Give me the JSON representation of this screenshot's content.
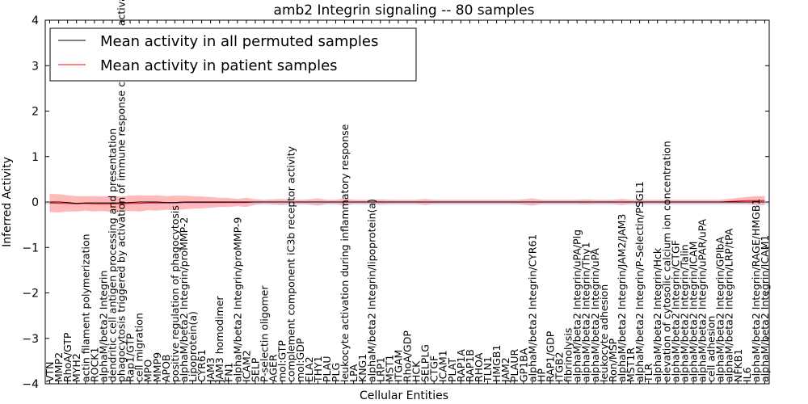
{
  "chart_data": {
    "type": "line",
    "title": "amb2 Integrin signaling -- 80 samples",
    "xlabel": "Cellular Entities",
    "ylabel": "Inferred Activity",
    "ylim": [
      -4,
      4
    ],
    "yticks": [
      -4,
      -3,
      -2,
      -1,
      0,
      1,
      2,
      3,
      4
    ],
    "legend_position": "top-left",
    "colors": {
      "permuted": "#000000",
      "patient": "#ff0000",
      "band": "#ff8080"
    },
    "legend": [
      {
        "key": "permuted",
        "label": "Mean activity in all permuted samples"
      },
      {
        "key": "patient",
        "label": "Mean activity in patient samples"
      }
    ],
    "categories": [
      "VTN",
      "MMP2",
      "RhoA/GTP",
      "MYH2",
      "actin filament polymerization",
      "ROCK1",
      "alphaM/beta2 Integrin",
      "dendritic cell antigen processing and presentation",
      "phagocytosis triggered by activation of immune response cell surface activating receptor",
      "Rap1/GTP",
      "cell migration",
      "MPO",
      "MMP9",
      "APOB",
      "positive regulation of phagocytosis",
      "alphaM/beta2 Integrin/proMMP-2",
      "Lipoprotein(a)",
      "CYR61",
      "JAM3",
      "JAM3 homodimer",
      "FN1",
      "alphaM/beta2 Integrin/proMMP-9",
      "ICAM2",
      "SELP",
      "P-selectin oligomer",
      "AGER",
      "mol:GTP",
      "complement component iC3b receptor activity",
      "mol:GDP",
      "ELA2",
      "THY1",
      "PLAU",
      "PLG",
      "leukocyte activation during inflammatory response",
      "LPA",
      "KNG1",
      "alphaM/beta2 Integrin/lipoprotein(a)",
      "LRP1",
      "MST1",
      "ITGAM",
      "RhoA/GDP",
      "HCK",
      "SELPLG",
      "CTGF",
      "ICAM1",
      "PLAT",
      "RAP1A",
      "RAP1B",
      "RHOA",
      "TLN1",
      "HMGB1",
      "JAM2",
      "PLAUR",
      "GP1BA",
      "alphaM/beta2 Integrin/CYR61",
      "HP",
      "RAP1/GDP",
      "ITGB2",
      "fibrinolysis",
      "alphaM/beta2 Integrin/uPA/Plg",
      "alphaM/beta2 Integrin/Thy1",
      "alphaM/beta2 Integrin/uPA",
      "leukocyte adhesion",
      "Ron/MSP",
      "alphaM/beta2 Integrin/JAM2/JAM3",
      "MST1R",
      "alphaM/beta2 Integrin/P-Selectin/PSGL1",
      "TLR",
      "alphaM/beta2 Integrin/Hck",
      "elevation of cytosolic calcium ion concentration",
      "alphaM/beta2 Integrin/CTGF",
      "alphaM/beta2 Integrin/Talin",
      "alphaM/beta2 Integrin/ICAM",
      "alphaM/beta2 Integrin/uPAR/uPA",
      "cell adhesion",
      "alphaM/beta2 Integrin/GPIbA",
      "alphaM/beta2 Integrin/LRP/tPA",
      "NFKB1",
      "IL6",
      "alphaM/beta2 Integrin/RAGE/HMGB1",
      "alphaM/beta2 Integrin/ICAM1"
    ],
    "series": [
      {
        "name": "Mean activity in all permuted samples",
        "values": [
          0,
          0,
          -0.01,
          -0.03,
          -0.02,
          -0.02,
          -0.02,
          -0.02,
          -0.02,
          -0.01,
          0,
          0,
          0,
          -0.01,
          -0.01,
          0,
          0,
          0,
          0,
          0,
          0,
          0,
          0,
          0,
          0,
          0,
          0,
          0,
          0,
          0,
          0,
          0,
          0,
          0,
          0,
          0,
          0,
          0,
          0,
          0,
          0,
          0,
          0,
          0,
          0,
          0,
          0,
          0,
          0,
          0,
          0,
          0,
          0,
          0,
          0,
          0,
          0,
          0,
          0,
          0,
          0,
          0,
          0,
          0,
          0,
          0,
          0,
          0,
          0,
          0,
          0,
          0,
          0,
          0,
          0,
          0,
          0,
          0,
          0,
          0,
          0
        ]
      },
      {
        "name": "Mean activity in patient samples",
        "values": [
          -0.02,
          -0.03,
          -0.03,
          -0.04,
          -0.03,
          -0.04,
          -0.04,
          -0.04,
          -0.04,
          -0.03,
          -0.03,
          -0.02,
          -0.02,
          -0.02,
          -0.02,
          -0.01,
          -0.01,
          -0.01,
          -0.01,
          -0.01,
          -0.01,
          -0.01,
          -0.01,
          0,
          0,
          0,
          0,
          0,
          0,
          0,
          0,
          0,
          0,
          0,
          0,
          0,
          0,
          0,
          0,
          0,
          0,
          0,
          0,
          0,
          0,
          0,
          0,
          0,
          0,
          0,
          0,
          0,
          0,
          0,
          0,
          0,
          0,
          0,
          0,
          0,
          0,
          0,
          0,
          0,
          0,
          0,
          0,
          0,
          0,
          0,
          0,
          0,
          0,
          0,
          0,
          0,
          0.01,
          0.02,
          0.03,
          0.03,
          0.03
        ]
      }
    ],
    "band_halfwidth": [
      0.2,
      0.2,
      0.18,
      0.17,
      0.16,
      0.17,
      0.16,
      0.18,
      0.16,
      0.17,
      0.18,
      0.16,
      0.17,
      0.15,
      0.16,
      0.15,
      0.14,
      0.13,
      0.12,
      0.1,
      0.1,
      0.08,
      0.1,
      0.06,
      0.05,
      0.06,
      0.07,
      0.05,
      0.05,
      0.06,
      0.08,
      0.05,
      0.05,
      0.08,
      0.05,
      0.05,
      0.05,
      0.06,
      0.05,
      0.05,
      0.05,
      0.05,
      0.07,
      0.05,
      0.05,
      0.05,
      0.05,
      0.05,
      0.05,
      0.05,
      0.05,
      0.05,
      0.05,
      0.06,
      0.08,
      0.05,
      0.05,
      0.05,
      0.05,
      0.05,
      0.06,
      0.05,
      0.05,
      0.05,
      0.07,
      0.05,
      0.05,
      0.05,
      0.05,
      0.05,
      0.05,
      0.05,
      0.05,
      0.05,
      0.05,
      0.05,
      0.06,
      0.07,
      0.08,
      0.1,
      0.1
    ]
  }
}
